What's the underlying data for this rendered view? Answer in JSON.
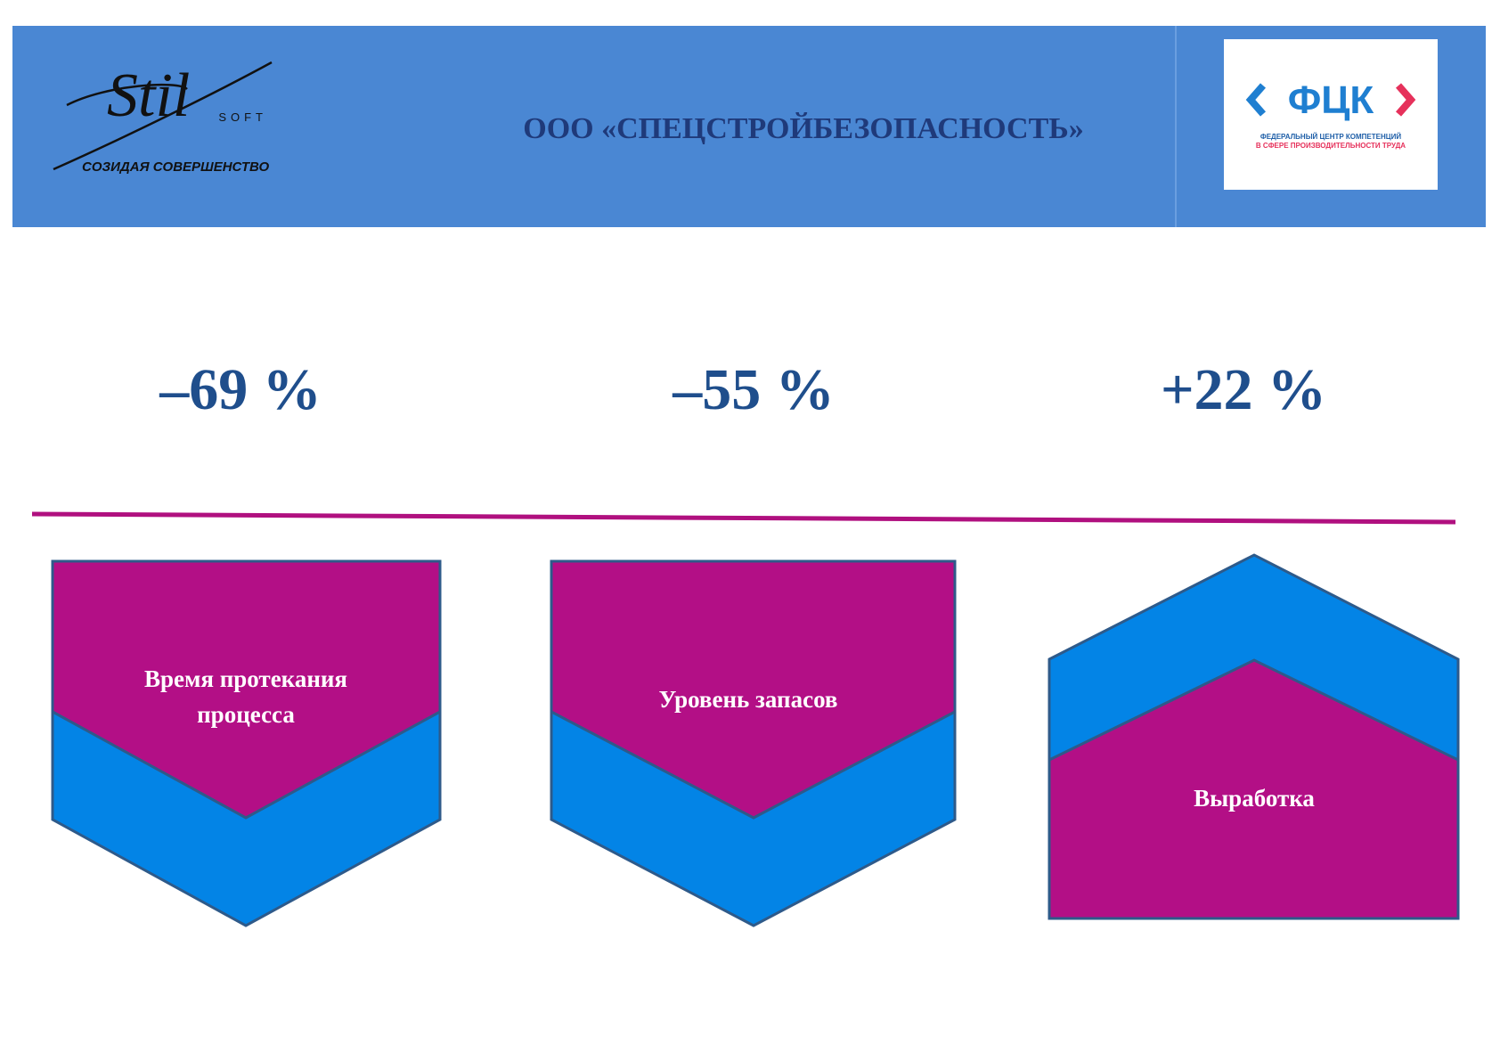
{
  "header": {
    "logo_left": {
      "name": "Stil",
      "sub": "SOFT",
      "tagline": "СОЗИДАЯ СОВЕРШЕНСТВО"
    },
    "title": "ООО «СПЕЦСТРОЙБЕЗОПАСНОСТЬ»",
    "logo_right": {
      "name": "ФЦК",
      "line1": "ФЕДЕРАЛЬНЫЙ ЦЕНТР КОМПЕТЕНЦИЙ",
      "line2": "В СФЕРЕ ПРОИЗВОДИТЕЛЬНОСТИ ТРУДА"
    }
  },
  "metrics": [
    {
      "value": "–69 %",
      "label": "Время протекания процесса"
    },
    {
      "value": "–55 %",
      "label": "Уровень запасов"
    },
    {
      "value": "+22 %",
      "label": "Выработка"
    }
  ]
}
